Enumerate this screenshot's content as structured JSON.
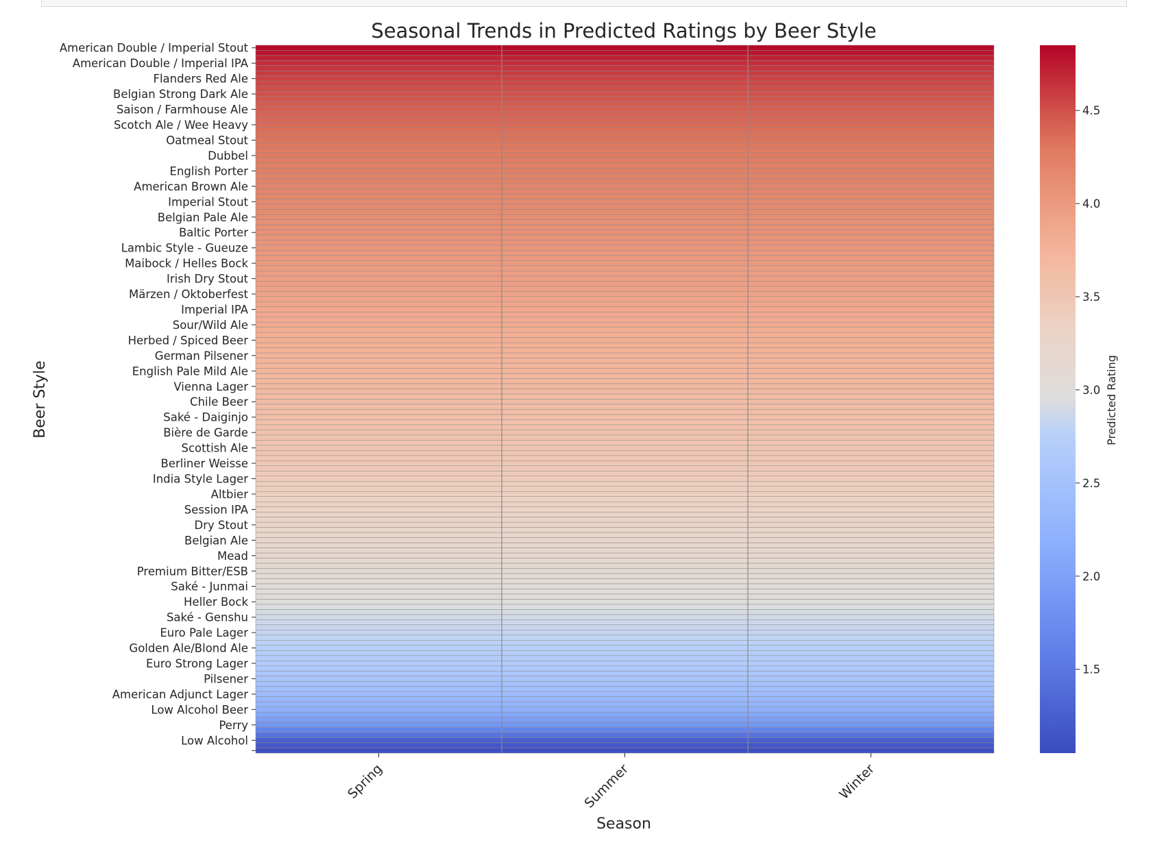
{
  "chart_data": {
    "type": "heatmap",
    "title": "Seasonal Trends in Predicted Ratings by Beer Style",
    "xlabel": "Season",
    "ylabel": "Beer Style",
    "colorbar_label": "Predicted Rating",
    "colormap": "coolwarm",
    "color_range": [
      1.05,
      4.85
    ],
    "colorbar_ticks": [
      1.5,
      2.0,
      2.5,
      3.0,
      3.5,
      4.0,
      4.5
    ],
    "columns": [
      "Spring",
      "Summer",
      "Winter"
    ],
    "total_rows": 138,
    "labeled_rows": [
      {
        "label": "American Double / Imperial Stout",
        "index": 0,
        "value": 4.83
      },
      {
        "label": "American Double / Imperial IPA",
        "index": 3,
        "value": 4.66
      },
      {
        "label": "Flanders Red Ale",
        "index": 6,
        "value": 4.56
      },
      {
        "label": "Belgian Strong Dark Ale",
        "index": 9,
        "value": 4.49
      },
      {
        "label": "Saison / Farmhouse Ale",
        "index": 12,
        "value": 4.43
      },
      {
        "label": "Scotch Ale / Wee Heavy",
        "index": 15,
        "value": 4.38
      },
      {
        "label": "Oatmeal Stout",
        "index": 18,
        "value": 4.33
      },
      {
        "label": "Dubbel",
        "index": 21,
        "value": 4.28
      },
      {
        "label": "English Porter",
        "index": 24,
        "value": 4.24
      },
      {
        "label": "American Brown Ale",
        "index": 27,
        "value": 4.2
      },
      {
        "label": "Imperial Stout",
        "index": 30,
        "value": 4.16
      },
      {
        "label": "Belgian Pale Ale",
        "index": 33,
        "value": 4.12
      },
      {
        "label": "Baltic Porter",
        "index": 36,
        "value": 4.08
      },
      {
        "label": "Lambic Style - Gueuze",
        "index": 39,
        "value": 4.04
      },
      {
        "label": "Maibock / Helles Bock",
        "index": 42,
        "value": 4.0
      },
      {
        "label": "Irish Dry Stout",
        "index": 45,
        "value": 3.96
      },
      {
        "label": "Märzen / Oktoberfest",
        "index": 48,
        "value": 3.92
      },
      {
        "label": "Imperial IPA",
        "index": 51,
        "value": 3.88
      },
      {
        "label": "Sour/Wild Ale",
        "index": 54,
        "value": 3.84
      },
      {
        "label": "Herbed / Spiced Beer",
        "index": 57,
        "value": 3.8
      },
      {
        "label": "German Pilsener",
        "index": 60,
        "value": 3.76
      },
      {
        "label": "English Pale Mild Ale",
        "index": 63,
        "value": 3.72
      },
      {
        "label": "Vienna Lager",
        "index": 66,
        "value": 3.68
      },
      {
        "label": "Chile Beer",
        "index": 69,
        "value": 3.64
      },
      {
        "label": "Saké - Daiginjo",
        "index": 72,
        "value": 3.6
      },
      {
        "label": "Bière de Garde",
        "index": 75,
        "value": 3.56
      },
      {
        "label": "Scottish Ale",
        "index": 78,
        "value": 3.52
      },
      {
        "label": "Berliner Weisse",
        "index": 81,
        "value": 3.48
      },
      {
        "label": "India Style Lager",
        "index": 84,
        "value": 3.43
      },
      {
        "label": "Altbier",
        "index": 87,
        "value": 3.38
      },
      {
        "label": "Session IPA",
        "index": 90,
        "value": 3.33
      },
      {
        "label": "Dry Stout",
        "index": 93,
        "value": 3.28
      },
      {
        "label": "Belgian Ale",
        "index": 96,
        "value": 3.23
      },
      {
        "label": "Mead",
        "index": 99,
        "value": 3.17
      },
      {
        "label": "Premium Bitter/ESB",
        "index": 102,
        "value": 3.1
      },
      {
        "label": "Saké - Junmai",
        "index": 105,
        "value": 3.03
      },
      {
        "label": "Heller Bock",
        "index": 108,
        "value": 2.96
      },
      {
        "label": "Saké - Genshu",
        "index": 111,
        "value": 2.89
      },
      {
        "label": "Euro Pale Lager",
        "index": 114,
        "value": 2.82
      },
      {
        "label": "Golden Ale/Blond Ale",
        "index": 117,
        "value": 2.75
      },
      {
        "label": "Euro Strong Lager",
        "index": 120,
        "value": 2.67
      },
      {
        "label": "Pilsener",
        "index": 123,
        "value": 2.55
      },
      {
        "label": "American Adjunct Lager",
        "index": 126,
        "value": 2.4
      },
      {
        "label": "Low Alcohol Beer",
        "index": 129,
        "value": 2.2
      },
      {
        "label": "Perry",
        "index": 132,
        "value": 1.85
      },
      {
        "label": "Low Alcohol",
        "index": 135,
        "value": 1.25
      },
      {
        "label": "",
        "index": 137,
        "value": 1.08
      }
    ]
  }
}
